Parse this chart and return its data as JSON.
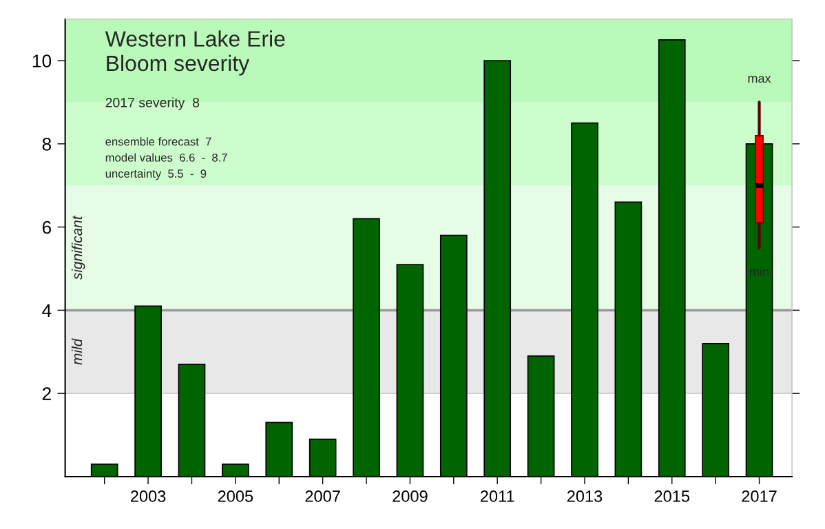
{
  "chart_data": {
    "type": "bar",
    "title": "Western Lake Erie\nBloom severity",
    "categories": [
      null,
      "2003",
      null,
      "2005",
      null,
      "2007",
      null,
      "2009",
      null,
      "2011",
      null,
      "2013",
      null,
      "2015",
      null,
      "2017"
    ],
    "series": [
      {
        "color": "#006400",
        "values": [
          0.3,
          4.1,
          2.7,
          0.3,
          1.3,
          0.9,
          6.2,
          5.1,
          5.8,
          10.0,
          2.9,
          8.5,
          6.6,
          10.5,
          3.2,
          8.0
        ]
      },
      {
        "type": "box",
        "color": "#ff0000",
        "boxes": [
          null,
          null,
          null,
          null,
          null,
          null,
          null,
          null,
          null,
          null,
          null,
          null,
          null,
          null,
          null,
          {
            "low": 5.5,
            "q1": 6.1,
            "median": 7.0,
            "q3": 8.2,
            "high": 9.0
          }
        ]
      }
    ],
    "ylim": [
      0,
      11
    ],
    "yticks": [
      2,
      4,
      6,
      8,
      10
    ],
    "bands": [
      {
        "axis": "y",
        "from": 2,
        "to": 4,
        "label": "mild",
        "color": "#e8e8e8"
      },
      {
        "axis": "y",
        "from": 4,
        "to": 7,
        "label": "significant",
        "color": "#e6fce6"
      },
      {
        "axis": "y",
        "from": 7,
        "to": 9,
        "label": null,
        "color": "#cdfccd"
      },
      {
        "axis": "y",
        "from": 9,
        "to": 11,
        "label": null,
        "color": "#b9f9b9"
      }
    ],
    "ref_lines": [
      {
        "axis": "y",
        "value": 4,
        "label": null,
        "color": "#999999"
      },
      {
        "axis": "y",
        "value": 2,
        "label": null,
        "color": "#cccccc"
      }
    ],
    "annotations": [
      "2017 severity  8",
      "ensemble forecast  7",
      "model values  6.6  -  8.7",
      "uncertainty  5.5  -  9",
      "max",
      "min"
    ],
    "grid": false,
    "legend": false
  }
}
